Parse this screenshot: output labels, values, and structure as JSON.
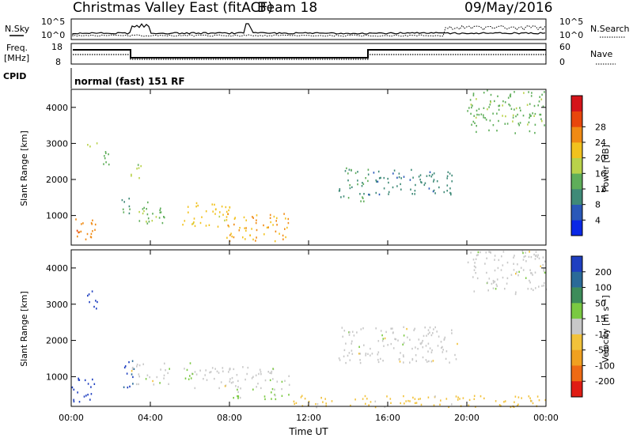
{
  "header": {
    "title": "Christmas Valley East (fitACF)",
    "beam": "Beam 18",
    "date": "09/May/2016"
  },
  "top_panels": {
    "noise_left_label": "N.Sky",
    "noise_right_label": "N.Search",
    "noise_left_ticks": [
      "10^5",
      "10^0"
    ],
    "noise_right_ticks": [
      "10^5",
      "10^0"
    ],
    "freq_label_1": "Freq.",
    "freq_label_2": "[MHz]",
    "freq_ticks": [
      "18",
      "8"
    ],
    "nave_label": "Nave",
    "nave_ticks": [
      "60",
      "0"
    ],
    "cpid_label": "CPID",
    "cpid_text": "normal (fast) 151 RF"
  },
  "colorbars": {
    "power": {
      "label": "Power [dB]",
      "ticks": [
        "4",
        "8",
        "12",
        "16",
        "20",
        "24",
        "28"
      ],
      "colors": [
        "#0a28e6",
        "#2a58b8",
        "#3f8a78",
        "#5fae5a",
        "#b9d24a",
        "#f2c21e",
        "#f08a14",
        "#e8460c",
        "#d4141a"
      ]
    },
    "velocity": {
      "label": "Velocity [m s⁻¹]",
      "ticks": [
        "200",
        "100",
        "50",
        "15",
        "-15",
        "-50",
        "-100",
        "-200"
      ],
      "colors": [
        "#1f3fc0",
        "#2a6a98",
        "#3d8c5a",
        "#7ac942",
        "#c8c8c8",
        "#f2c23a",
        "#f0a020",
        "#ee6a14",
        "#e01c14"
      ]
    }
  },
  "chart_data": [
    {
      "type": "heatmap",
      "title": "Power",
      "xlabel": "Time UT",
      "ylabel": "Slant Range [km]",
      "x_ticks": [
        "00:00",
        "04:00",
        "08:00",
        "12:00",
        "16:00",
        "20:00",
        "00:00"
      ],
      "y_ticks": [
        "1000",
        "2000",
        "3000",
        "4000"
      ],
      "xlim_hours": [
        0,
        24
      ],
      "ylim_km": [
        180,
        4500
      ],
      "clim": [
        0,
        30
      ],
      "regions": [
        {
          "t0": 0.0,
          "t1": 1.2,
          "r0": 300,
          "r1": 1000,
          "value": 22
        },
        {
          "t0": 0.8,
          "t1": 1.3,
          "r0": 2900,
          "r1": 3200,
          "value": 16
        },
        {
          "t0": 1.4,
          "t1": 1.9,
          "r0": 2300,
          "r1": 3000,
          "value": 12
        },
        {
          "t0": 2.5,
          "t1": 3.0,
          "r0": 800,
          "r1": 1500,
          "value": 10
        },
        {
          "t0": 3.0,
          "t1": 3.6,
          "r0": 2000,
          "r1": 2500,
          "value": 14
        },
        {
          "t0": 3.2,
          "t1": 5.0,
          "r0": 800,
          "r1": 1400,
          "value": 12
        },
        {
          "t0": 5.6,
          "t1": 8.0,
          "r0": 700,
          "r1": 1400,
          "value": 18
        },
        {
          "t0": 7.8,
          "t1": 11.0,
          "r0": 300,
          "r1": 1100,
          "value": 20
        },
        {
          "t0": 13.5,
          "t1": 15.0,
          "r0": 1400,
          "r1": 2400,
          "value": 10
        },
        {
          "t0": 15.0,
          "t1": 19.5,
          "r0": 1600,
          "r1": 2300,
          "value": 8
        },
        {
          "t0": 20.0,
          "t1": 24.0,
          "r0": 3300,
          "r1": 4500,
          "value": 12
        }
      ]
    },
    {
      "type": "heatmap",
      "title": "Velocity",
      "xlabel": "Time UT",
      "ylabel": "Slant Range [km]",
      "x_ticks": [
        "00:00",
        "04:00",
        "08:00",
        "12:00",
        "16:00",
        "20:00",
        "00:00"
      ],
      "y_ticks": [
        "1000",
        "2000",
        "3000",
        "4000"
      ],
      "xlim_hours": [
        0,
        24
      ],
      "ylim_km": [
        180,
        4500
      ],
      "clim": [
        -200,
        200
      ],
      "regions": [
        {
          "t0": 0.0,
          "t1": 1.2,
          "r0": 300,
          "r1": 1000,
          "value": 180
        },
        {
          "t0": 0.8,
          "t1": 1.3,
          "r0": 2900,
          "r1": 3600,
          "value": 200
        },
        {
          "t0": 2.5,
          "t1": 3.2,
          "r0": 700,
          "r1": 1500,
          "value": 150
        },
        {
          "t0": 3.0,
          "t1": 5.0,
          "r0": 800,
          "r1": 1400,
          "value": 0
        },
        {
          "t0": 5.6,
          "t1": 6.4,
          "r0": 900,
          "r1": 1400,
          "value": 30
        },
        {
          "t0": 6.2,
          "t1": 11.0,
          "r0": 700,
          "r1": 1300,
          "value": 0
        },
        {
          "t0": 8.0,
          "t1": 11.0,
          "r0": 400,
          "r1": 700,
          "value": 40
        },
        {
          "t0": 11.0,
          "t1": 24.0,
          "r0": 180,
          "r1": 500,
          "value": -40
        },
        {
          "t0": 13.5,
          "t1": 19.5,
          "r0": 1400,
          "r1": 2400,
          "value": 0
        },
        {
          "t0": 20.0,
          "t1": 24.0,
          "r0": 3300,
          "r1": 4500,
          "value": 0
        }
      ]
    }
  ]
}
